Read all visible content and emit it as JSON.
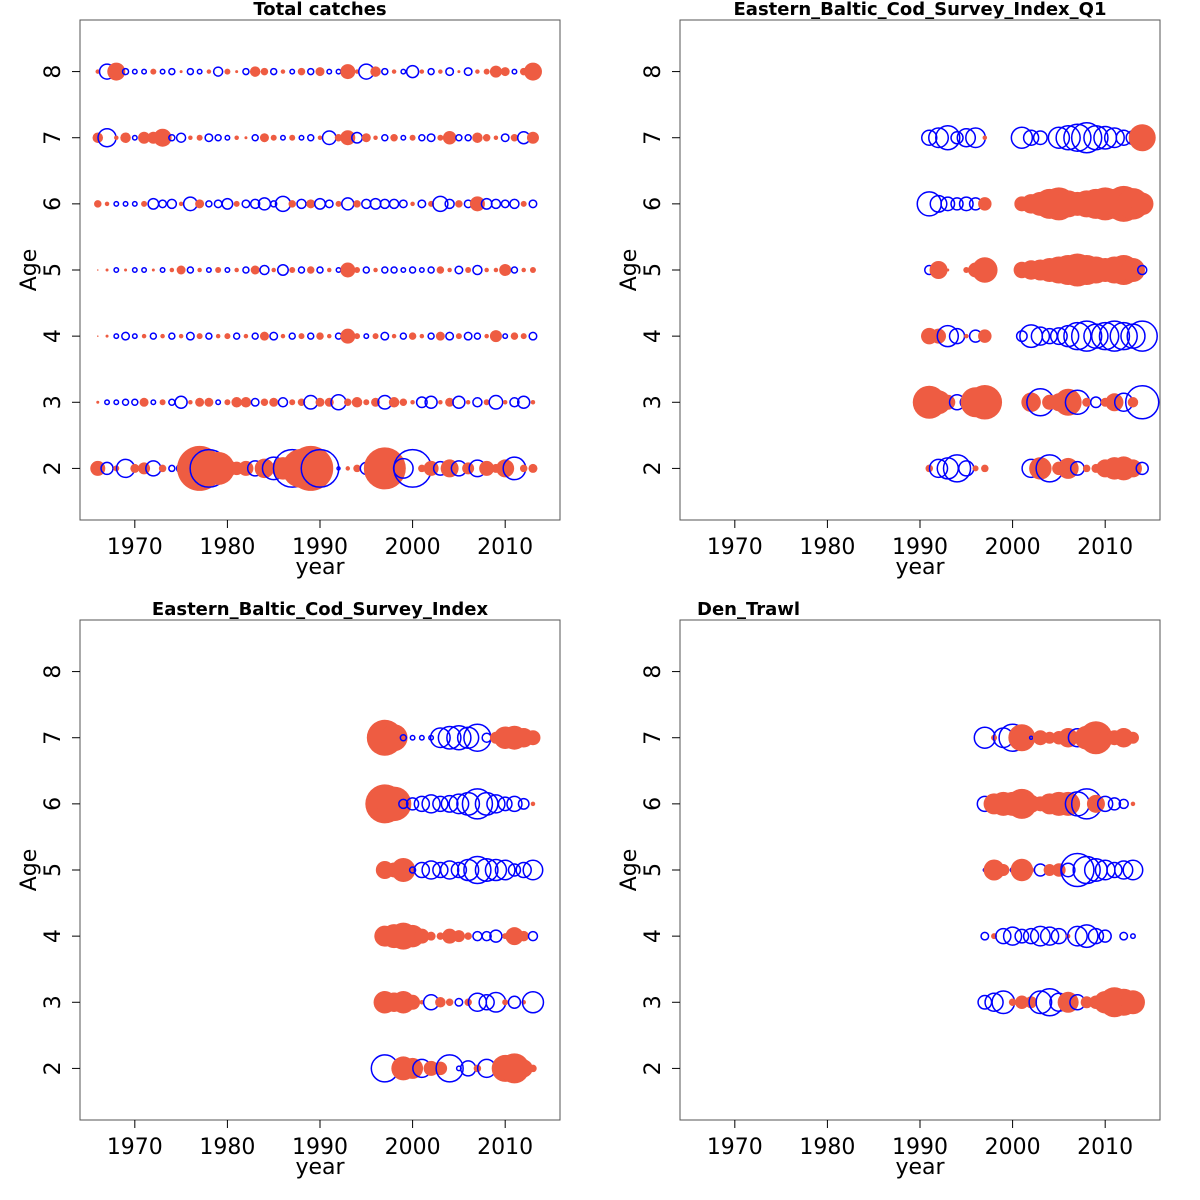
{
  "chart_data": [
    {
      "type": "bubble",
      "title": "Total catches",
      "title_position": "center",
      "xlabel": "year",
      "ylabel": "Age",
      "xlim": [
        1964.08,
        2015.92
      ],
      "ylim": [
        1.22,
        8.78
      ],
      "xticks": [
        1970,
        1980,
        1990,
        2000,
        2010
      ],
      "yticks": [
        2,
        3,
        4,
        5,
        6,
        7,
        8
      ],
      "positive_color": "#ee5c42",
      "negative_color": "#0000ff",
      "x": [
        1966,
        1967,
        1968,
        1969,
        1970,
        1971,
        1972,
        1973,
        1974,
        1975,
        1976,
        1977,
        1978,
        1979,
        1980,
        1981,
        1982,
        1983,
        1984,
        1985,
        1986,
        1987,
        1988,
        1989,
        1990,
        1991,
        1992,
        1993,
        1994,
        1995,
        1996,
        1997,
        1998,
        1999,
        2000,
        2001,
        2002,
        2003,
        2004,
        2005,
        2006,
        2007,
        2008,
        2009,
        2010,
        2011,
        2012,
        2013
      ],
      "ages": [
        2,
        3,
        4,
        5,
        6,
        7,
        8
      ],
      "values": [
        [
          1.0,
          -0.8,
          0.4,
          -1.2,
          0.6,
          0.8,
          -1.0,
          0.5,
          -0.4,
          -0.6,
          1.8,
          3.0,
          -2.5,
          2.2,
          1.2,
          0.9,
          1.0,
          -1.0,
          1.3,
          -1.5,
          1.5,
          -2.5,
          2.6,
          3.0,
          -2.5,
          0.3,
          -0.2,
          0.3,
          0.5,
          -0.8,
          0.5,
          2.8,
          1.0,
          -1.3,
          -2.5,
          0.5,
          1.0,
          -0.9,
          1.2,
          -1.0,
          0.8,
          -1.1,
          1.0,
          0.6,
          1.2,
          -1.5,
          0.5,
          0.6
        ],
        [
          0.2,
          -0.3,
          -0.3,
          -0.4,
          -0.4,
          0.6,
          -0.3,
          0.4,
          -0.4,
          -0.8,
          0.3,
          0.6,
          0.6,
          -0.3,
          0.4,
          0.7,
          0.7,
          -0.5,
          0.5,
          0.6,
          -0.6,
          0.4,
          0.5,
          -0.9,
          0.6,
          0.6,
          -1.0,
          0.5,
          0.7,
          0.4,
          0.6,
          -0.9,
          0.7,
          0.5,
          0.3,
          -0.7,
          -0.8,
          0.3,
          0.6,
          -0.8,
          0.3,
          -0.6,
          0.4,
          -0.9,
          0.3,
          -0.6,
          -0.8,
          0.3
        ],
        [
          0.1,
          0.2,
          -0.3,
          -0.5,
          -0.3,
          0.3,
          -0.4,
          0.3,
          -0.4,
          0.3,
          -0.5,
          0.4,
          -0.4,
          0.3,
          0.4,
          -0.4,
          0.3,
          -0.4,
          0.6,
          -0.5,
          0.3,
          -0.4,
          0.4,
          -0.4,
          0.5,
          0.3,
          -0.4,
          1.0,
          0.4,
          -0.3,
          0.4,
          -0.5,
          0.3,
          -0.4,
          0.5,
          0.3,
          -0.4,
          0.6,
          -0.5,
          0.4,
          -0.5,
          -0.4,
          0.3,
          0.8,
          -0.3,
          0.5,
          0.4,
          -0.5
        ],
        [
          0.1,
          0.2,
          -0.3,
          0.2,
          -0.3,
          -0.3,
          0.2,
          -0.3,
          0.3,
          0.6,
          -0.4,
          0.3,
          -0.3,
          0.4,
          -0.3,
          0.3,
          -0.4,
          0.6,
          -0.6,
          0.3,
          -0.7,
          0.4,
          -0.4,
          0.5,
          -0.4,
          0.3,
          -0.3,
          1.0,
          0.4,
          -0.4,
          0.3,
          -0.4,
          -0.4,
          -0.3,
          -0.4,
          -0.3,
          -0.4,
          0.5,
          0.3,
          -0.5,
          0.4,
          -0.6,
          0.3,
          0.3,
          0.8,
          -0.4,
          0.3,
          0.4
        ],
        [
          0.5,
          0.3,
          -0.3,
          -0.3,
          -0.3,
          0.4,
          -0.7,
          -0.5,
          -0.6,
          0.3,
          -0.9,
          0.6,
          -0.4,
          -0.5,
          -0.7,
          0.4,
          -0.5,
          -0.6,
          -0.8,
          -0.4,
          -1.0,
          0.5,
          -0.6,
          0.6,
          -0.7,
          -0.5,
          0.4,
          -0.8,
          0.5,
          -0.6,
          -0.7,
          -0.6,
          -0.6,
          -0.5,
          0.3,
          -0.5,
          0.4,
          -1.0,
          -0.6,
          0.5,
          -0.5,
          1.0,
          -0.7,
          -0.6,
          -0.5,
          -0.6,
          0.4,
          -0.5
        ],
        [
          0.7,
          -1.2,
          0.3,
          0.7,
          -0.3,
          0.8,
          0.8,
          1.2,
          -0.4,
          -0.6,
          0.3,
          0.4,
          -0.5,
          -0.4,
          -0.3,
          0.3,
          0.2,
          -0.4,
          0.6,
          0.4,
          -0.3,
          0.4,
          -0.3,
          -0.4,
          0.3,
          -0.9,
          0.5,
          1.0,
          -0.7,
          0.6,
          0.3,
          -0.4,
          0.5,
          -0.3,
          0.4,
          -0.4,
          -0.5,
          0.4,
          0.9,
          -0.4,
          -0.4,
          0.7,
          0.5,
          0.3,
          -0.5,
          0.5,
          -0.8,
          0.8
        ],
        [
          0.3,
          -1.0,
          1.2,
          -0.4,
          -0.3,
          -0.3,
          0.4,
          -0.3,
          -0.4,
          0.2,
          -0.4,
          -0.3,
          0.3,
          -0.6,
          0.4,
          0.2,
          -0.4,
          0.7,
          0.5,
          -0.4,
          0.3,
          -0.3,
          0.5,
          -0.4,
          0.6,
          -0.3,
          -0.3,
          1.0,
          0.3,
          -1.0,
          0.7,
          -0.4,
          0.3,
          -0.3,
          -0.8,
          0.3,
          -0.4,
          0.3,
          -0.5,
          0.2,
          -0.5,
          0.3,
          0.4,
          0.8,
          0.6,
          -0.3,
          0.5,
          1.2
        ]
      ]
    },
    {
      "type": "bubble",
      "title": "Eastern_Baltic_Cod_Survey_Index_Q1",
      "title_position": "center",
      "xlabel": "year",
      "ylabel": "Age",
      "xlim": [
        1964.08,
        2015.92
      ],
      "ylim": [
        1.22,
        8.78
      ],
      "xticks": [
        1970,
        1980,
        1990,
        2000,
        2010
      ],
      "yticks": [
        2,
        3,
        4,
        5,
        6,
        7,
        8
      ],
      "positive_color": "#ee5c42",
      "negative_color": "#0000ff",
      "x": [
        1991,
        1992,
        1993,
        1994,
        1995,
        1996,
        1997,
        1998,
        1999,
        2000,
        2001,
        2002,
        2003,
        2004,
        2005,
        2006,
        2007,
        2008,
        2009,
        2010,
        2011,
        2012,
        2013,
        2014
      ],
      "ages": [
        2,
        3,
        4,
        5,
        6,
        7
      ],
      "values": [
        [
          0.5,
          -1.2,
          -1.4,
          -1.8,
          -1.0,
          0.4,
          0.5,
          null,
          null,
          null,
          null,
          -1.2,
          1.5,
          -1.8,
          0.9,
          1.4,
          -0.9,
          0.5,
          0.6,
          1.2,
          1.5,
          1.6,
          1.2,
          -0.8
        ],
        [
          2.2,
          1.6,
          1.0,
          -1.0,
          -0.8,
          2.0,
          2.3,
          null,
          null,
          null,
          null,
          1.3,
          -1.8,
          1.0,
          1.2,
          1.8,
          -1.6,
          0.6,
          -0.7,
          0.6,
          1.2,
          -1.2,
          0.7,
          -2.2
        ],
        [
          1.1,
          1.0,
          -1.4,
          -1.0,
          0.3,
          -0.8,
          0.9,
          null,
          null,
          null,
          -0.7,
          -1.5,
          -1.2,
          -1.0,
          -1.1,
          -1.4,
          -1.8,
          -2.0,
          -1.6,
          -1.8,
          -2.0,
          -1.8,
          -1.6,
          -2.0
        ],
        [
          -0.6,
          1.2,
          0.2,
          null,
          0.4,
          1.0,
          1.7,
          null,
          null,
          null,
          1.1,
          1.3,
          1.4,
          1.6,
          1.8,
          2.0,
          2.2,
          2.0,
          1.8,
          1.6,
          1.8,
          2.0,
          1.6,
          -0.6
        ],
        [
          -1.6,
          -1.1,
          -0.9,
          -0.8,
          -0.9,
          -0.8,
          0.9,
          null,
          null,
          null,
          1.0,
          1.3,
          1.6,
          2.0,
          2.2,
          1.8,
          1.6,
          1.8,
          2.0,
          2.2,
          2.0,
          2.4,
          2.1,
          1.5
        ],
        [
          -1.0,
          -1.3,
          -1.6,
          -0.8,
          -1.2,
          -1.3,
          0.3,
          null,
          null,
          null,
          -1.4,
          -1.0,
          -0.9,
          null,
          -1.4,
          -1.6,
          -1.8,
          -2.0,
          -1.6,
          -1.5,
          -1.3,
          -1.0,
          -0.9,
          1.8
        ]
      ]
    },
    {
      "type": "bubble",
      "title": "Eastern_Baltic_Cod_Survey_Index",
      "title_position": "center",
      "xlabel": "year",
      "ylabel": "Age",
      "xlim": [
        1964.08,
        2015.92
      ],
      "ylim": [
        1.22,
        8.78
      ],
      "xticks": [
        1970,
        1980,
        1990,
        2000,
        2010
      ],
      "yticks": [
        2,
        3,
        4,
        5,
        6,
        7,
        8
      ],
      "positive_color": "#ee5c42",
      "negative_color": "#0000ff",
      "x": [
        1997,
        1998,
        1999,
        2000,
        2001,
        2002,
        2003,
        2004,
        2005,
        2006,
        2007,
        2008,
        2009,
        2010,
        2011,
        2012,
        2013
      ],
      "ages": [
        2,
        3,
        4,
        5,
        6,
        7
      ],
      "values": [
        [
          -1.8,
          0.3,
          1.6,
          1.4,
          -1.2,
          1.0,
          0.9,
          -1.8,
          -0.3,
          -1.0,
          0.5,
          -1.2,
          0.4,
          1.8,
          2.0,
          1.2,
          0.5
        ],
        [
          1.5,
          1.3,
          1.5,
          1.0,
          0.3,
          -1.0,
          0.7,
          0.5,
          -0.5,
          0.5,
          -1.2,
          -1.0,
          -1.3,
          0.4,
          -0.8,
          0.3,
          -1.4
        ],
        [
          1.4,
          1.6,
          1.8,
          1.5,
          1.0,
          0.6,
          0.5,
          1.0,
          0.8,
          0.5,
          -0.6,
          -0.6,
          -0.8,
          0.4,
          1.2,
          0.7,
          -0.6
        ],
        [
          1.2,
          1.0,
          1.6,
          -0.4,
          -1.0,
          -1.2,
          -1.0,
          -1.2,
          -1.0,
          -1.4,
          -1.8,
          -1.5,
          -1.4,
          -1.3,
          -0.8,
          -1.0,
          -1.3
        ],
        [
          2.6,
          2.3,
          -0.6,
          -0.8,
          -1.0,
          -1.2,
          -1.0,
          -1.1,
          -1.3,
          -1.5,
          -2.0,
          -1.5,
          -1.2,
          -0.9,
          -1.0,
          -0.7,
          0.3
        ],
        [
          2.4,
          1.8,
          -0.4,
          -0.3,
          -0.3,
          -0.3,
          -1.3,
          -1.5,
          -1.6,
          -1.4,
          -1.8,
          -0.6,
          0.8,
          1.5,
          1.6,
          1.3,
          1.0
        ]
      ]
    },
    {
      "type": "bubble",
      "title": "Den_Trawl",
      "title_position": "left",
      "xlabel": "year",
      "ylabel": "Age",
      "xlim": [
        1964.08,
        2015.92
      ],
      "ylim": [
        1.22,
        8.78
      ],
      "xticks": [
        1970,
        1980,
        1990,
        2000,
        2010
      ],
      "yticks": [
        2,
        3,
        4,
        5,
        6,
        7,
        8
      ],
      "positive_color": "#ee5c42",
      "negative_color": "#0000ff",
      "x": [
        1997,
        1998,
        1999,
        2000,
        2001,
        2002,
        2003,
        2004,
        2005,
        2006,
        2007,
        2008,
        2009,
        2010,
        2011,
        2012,
        2013
      ],
      "ages": [
        3,
        4,
        5,
        6,
        7
      ],
      "values": [
        [
          -0.9,
          -1.2,
          -1.5,
          0.5,
          0.9,
          0.8,
          -1.5,
          -1.8,
          -1.2,
          1.4,
          -1.0,
          0.8,
          0.9,
          1.5,
          2.0,
          1.8,
          1.6
        ],
        [
          -0.5,
          0.4,
          -1.0,
          -1.2,
          -0.9,
          -1.0,
          -1.3,
          -1.2,
          -1.0,
          0.3,
          -1.3,
          -1.5,
          -1.0,
          -0.8,
          null,
          -0.5,
          -0.3
        ],
        [
          -0.2,
          1.4,
          0.8,
          -0.3,
          1.5,
          0.4,
          -0.8,
          0.8,
          0.9,
          -0.9,
          -2.2,
          -1.8,
          -1.5,
          -1.3,
          -1.0,
          -1.2,
          -1.3
        ],
        [
          -1.0,
          1.4,
          1.6,
          1.6,
          2.0,
          1.2,
          1.0,
          1.4,
          1.6,
          1.6,
          -1.6,
          -2.0,
          1.2,
          -1.0,
          -0.8,
          -0.6,
          0.3
        ],
        [
          -1.4,
          0.4,
          -1.3,
          -1.8,
          1.8,
          -0.2,
          1.0,
          0.8,
          0.9,
          1.3,
          -1.2,
          1.6,
          2.2,
          0.9,
          1.0,
          1.3,
          0.8
        ]
      ]
    }
  ]
}
